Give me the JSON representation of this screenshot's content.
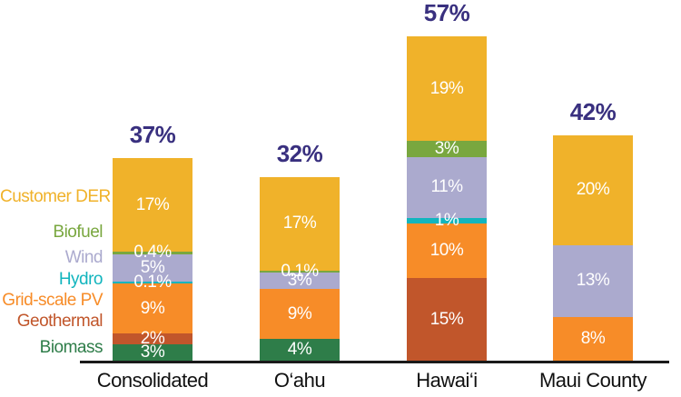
{
  "chart_data": {
    "type": "bar",
    "stacked": true,
    "orientation": "vertical",
    "unit": "%",
    "grid": false,
    "legend_position": "left",
    "axis_color": "#1a1a1a",
    "total_label_color": "#39307f",
    "segment_label_color": "#ffffff",
    "category_label_color": "#111111",
    "legend": [
      {
        "name": "Customer DER",
        "color": "#f0b22a"
      },
      {
        "name": "Biofuel",
        "color": "#79a73f"
      },
      {
        "name": "Wind",
        "color": "#abaace"
      },
      {
        "name": "Hydro",
        "color": "#12b5be"
      },
      {
        "name": "Grid-scale PV",
        "color": "#f78c28"
      },
      {
        "name": "Geothermal",
        "color": "#c1562b"
      },
      {
        "name": "Biomass",
        "color": "#2e7d49"
      }
    ],
    "categories": [
      "Consolidated",
      "O‘ahu",
      "Hawai‘i",
      "Maui County"
    ],
    "bars": [
      {
        "category": "Consolidated",
        "total_label": "37%",
        "segments": [
          {
            "name": "Biomass",
            "value": 3,
            "label": "3%"
          },
          {
            "name": "Geothermal",
            "value": 2,
            "label": "2%"
          },
          {
            "name": "Grid-scale PV",
            "value": 9,
            "label": "9%"
          },
          {
            "name": "Hydro",
            "value": 0.1,
            "label": "0.1%"
          },
          {
            "name": "Wind",
            "value": 5,
            "label": "5%"
          },
          {
            "name": "Biofuel",
            "value": 0.4,
            "label": "0.4%"
          },
          {
            "name": "Customer DER",
            "value": 17,
            "label": "17%"
          }
        ]
      },
      {
        "category": "O‘ahu",
        "total_label": "32%",
        "segments": [
          {
            "name": "Biomass",
            "value": 4,
            "label": "4%"
          },
          {
            "name": "Grid-scale PV",
            "value": 9,
            "label": "9%"
          },
          {
            "name": "Wind",
            "value": 3,
            "label": "3%"
          },
          {
            "name": "Biofuel",
            "value": 0.1,
            "label": "0.1%"
          },
          {
            "name": "Customer DER",
            "value": 17,
            "label": "17%"
          }
        ]
      },
      {
        "category": "Hawai‘i",
        "total_label": "57%",
        "segments": [
          {
            "name": "Geothermal",
            "value": 15,
            "label": "15%"
          },
          {
            "name": "Grid-scale PV",
            "value": 10,
            "label": "10%"
          },
          {
            "name": "Hydro",
            "value": 1,
            "label": "1%"
          },
          {
            "name": "Wind",
            "value": 11,
            "label": "11%"
          },
          {
            "name": "Biofuel",
            "value": 3,
            "label": "3%"
          },
          {
            "name": "Customer DER",
            "value": 19,
            "label": "19%"
          }
        ]
      },
      {
        "category": "Maui County",
        "total_label": "42%",
        "segments": [
          {
            "name": "Grid-scale PV",
            "value": 8,
            "label": "8%"
          },
          {
            "name": "Wind",
            "value": 13,
            "label": "13%"
          },
          {
            "name": "Customer DER",
            "value": 20,
            "label": "20%"
          }
        ]
      }
    ]
  }
}
